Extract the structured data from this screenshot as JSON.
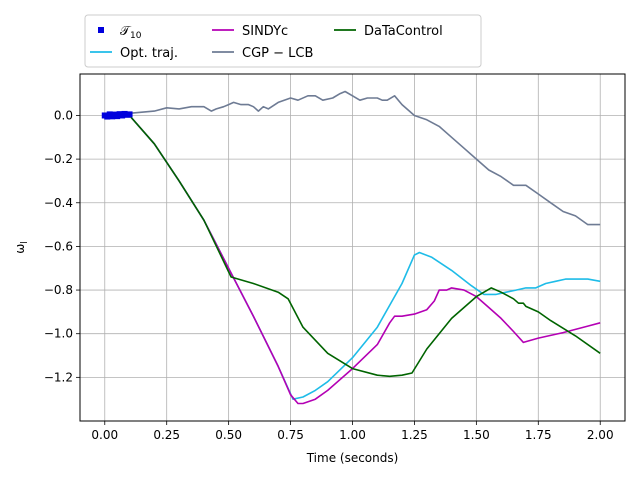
{
  "chart_data": {
    "type": "line",
    "xlabel": "Time (seconds)",
    "ylabel": "ω",
    "ylabel_sub": "l",
    "xlim": [
      -0.1,
      2.1
    ],
    "ylim": [
      -1.4,
      0.19
    ],
    "xticks": [
      0.0,
      0.25,
      0.5,
      0.75,
      1.0,
      1.25,
      1.5,
      1.75,
      2.0
    ],
    "xtick_labels": [
      "0.00",
      "0.25",
      "0.50",
      "0.75",
      "1.00",
      "1.25",
      "1.50",
      "1.75",
      "2.00"
    ],
    "yticks": [
      0.0,
      -0.2,
      -0.4,
      -0.6,
      -0.8,
      -1.0,
      -1.2
    ],
    "ytick_labels": [
      "0.0",
      "−0.2",
      "−0.4",
      "−0.6",
      "−0.8",
      "−1.0",
      "−1.2"
    ],
    "grid": true,
    "legend_placement": "top-center",
    "legend": [
      {
        "label": "𝒯",
        "sub": "10",
        "color": "#0000dd",
        "kind": "marker"
      },
      {
        "label": "Opt. traj.",
        "color": "#1ebce8",
        "kind": "line"
      },
      {
        "label": "SINDYc",
        "color": "#b400b4",
        "kind": "line"
      },
      {
        "label": "CGP − LCB",
        "color": "#6e7b94",
        "kind": "line"
      },
      {
        "label": "DaTaControl",
        "color": "#006400",
        "kind": "line"
      }
    ],
    "series": [
      {
        "name": "CGP − LCB",
        "color": "#6e7b94",
        "points": [
          [
            0,
            0
          ],
          [
            0.1,
            0.01
          ],
          [
            0.2,
            0.02
          ],
          [
            0.25,
            0.035
          ],
          [
            0.3,
            0.03
          ],
          [
            0.35,
            0.04
          ],
          [
            0.4,
            0.04
          ],
          [
            0.43,
            0.02
          ],
          [
            0.45,
            0.03
          ],
          [
            0.48,
            0.04
          ],
          [
            0.5,
            0.05
          ],
          [
            0.52,
            0.06
          ],
          [
            0.55,
            0.05
          ],
          [
            0.58,
            0.05
          ],
          [
            0.6,
            0.04
          ],
          [
            0.62,
            0.02
          ],
          [
            0.64,
            0.04
          ],
          [
            0.66,
            0.03
          ],
          [
            0.7,
            0.06
          ],
          [
            0.75,
            0.08
          ],
          [
            0.78,
            0.07
          ],
          [
            0.82,
            0.09
          ],
          [
            0.85,
            0.09
          ],
          [
            0.88,
            0.07
          ],
          [
            0.92,
            0.08
          ],
          [
            0.95,
            0.1
          ],
          [
            0.97,
            0.11
          ],
          [
            1.0,
            0.09
          ],
          [
            1.03,
            0.07
          ],
          [
            1.06,
            0.08
          ],
          [
            1.1,
            0.08
          ],
          [
            1.12,
            0.07
          ],
          [
            1.14,
            0.07
          ],
          [
            1.17,
            0.09
          ],
          [
            1.2,
            0.05
          ],
          [
            1.25,
            0.0
          ],
          [
            1.3,
            -0.02
          ],
          [
            1.35,
            -0.05
          ],
          [
            1.4,
            -0.1
          ],
          [
            1.45,
            -0.15
          ],
          [
            1.5,
            -0.2
          ],
          [
            1.55,
            -0.25
          ],
          [
            1.6,
            -0.28
          ],
          [
            1.65,
            -0.32
          ],
          [
            1.7,
            -0.32
          ],
          [
            1.75,
            -0.36
          ],
          [
            1.8,
            -0.4
          ],
          [
            1.85,
            -0.44
          ],
          [
            1.9,
            -0.46
          ],
          [
            1.95,
            -0.5
          ],
          [
            2.0,
            -0.5
          ]
        ]
      },
      {
        "name": "Opt. traj.",
        "color": "#1ebce8",
        "points": [
          [
            0,
            0
          ],
          [
            0.05,
            0.0
          ],
          [
            0.1,
            0.0
          ],
          [
            0.2,
            -0.13
          ],
          [
            0.3,
            -0.3
          ],
          [
            0.4,
            -0.48
          ],
          [
            0.5,
            -0.7
          ],
          [
            0.6,
            -0.92
          ],
          [
            0.7,
            -1.15
          ],
          [
            0.76,
            -1.3
          ],
          [
            0.8,
            -1.29
          ],
          [
            0.85,
            -1.26
          ],
          [
            0.9,
            -1.22
          ],
          [
            1.0,
            -1.11
          ],
          [
            1.1,
            -0.97
          ],
          [
            1.2,
            -0.77
          ],
          [
            1.25,
            -0.64
          ],
          [
            1.27,
            -0.628
          ],
          [
            1.32,
            -0.65
          ],
          [
            1.4,
            -0.71
          ],
          [
            1.48,
            -0.78
          ],
          [
            1.53,
            -0.82
          ],
          [
            1.58,
            -0.82
          ],
          [
            1.62,
            -0.81
          ],
          [
            1.66,
            -0.8
          ],
          [
            1.7,
            -0.79
          ],
          [
            1.74,
            -0.79
          ],
          [
            1.78,
            -0.77
          ],
          [
            1.82,
            -0.76
          ],
          [
            1.86,
            -0.75
          ],
          [
            1.9,
            -0.75
          ],
          [
            1.95,
            -0.75
          ],
          [
            2.0,
            -0.76
          ]
        ]
      },
      {
        "name": "SINDYc",
        "color": "#b400b4",
        "points": [
          [
            0,
            0
          ],
          [
            0.05,
            0.0
          ],
          [
            0.1,
            0.0
          ],
          [
            0.2,
            -0.13
          ],
          [
            0.3,
            -0.3
          ],
          [
            0.4,
            -0.48
          ],
          [
            0.5,
            -0.7
          ],
          [
            0.6,
            -0.92
          ],
          [
            0.7,
            -1.15
          ],
          [
            0.75,
            -1.28
          ],
          [
            0.78,
            -1.32
          ],
          [
            0.8,
            -1.32
          ],
          [
            0.85,
            -1.3
          ],
          [
            0.9,
            -1.26
          ],
          [
            1.0,
            -1.16
          ],
          [
            1.1,
            -1.05
          ],
          [
            1.15,
            -0.95
          ],
          [
            1.17,
            -0.92
          ],
          [
            1.2,
            -0.92
          ],
          [
            1.25,
            -0.91
          ],
          [
            1.3,
            -0.89
          ],
          [
            1.33,
            -0.85
          ],
          [
            1.35,
            -0.8
          ],
          [
            1.38,
            -0.8
          ],
          [
            1.4,
            -0.79
          ],
          [
            1.45,
            -0.8
          ],
          [
            1.5,
            -0.83
          ],
          [
            1.55,
            -0.88
          ],
          [
            1.6,
            -0.93
          ],
          [
            1.65,
            -0.99
          ],
          [
            1.69,
            -1.04
          ],
          [
            1.75,
            -1.02
          ],
          [
            1.85,
            -0.995
          ],
          [
            1.95,
            -0.965
          ],
          [
            2.0,
            -0.95
          ]
        ]
      },
      {
        "name": "DaTaControl",
        "color": "#006400",
        "points": [
          [
            0,
            0
          ],
          [
            0.05,
            0.0
          ],
          [
            0.1,
            0.0
          ],
          [
            0.2,
            -0.13
          ],
          [
            0.3,
            -0.3
          ],
          [
            0.4,
            -0.48
          ],
          [
            0.51,
            -0.74
          ],
          [
            0.6,
            -0.77
          ],
          [
            0.7,
            -0.81
          ],
          [
            0.74,
            -0.84
          ],
          [
            0.8,
            -0.97
          ],
          [
            0.9,
            -1.09
          ],
          [
            1.0,
            -1.16
          ],
          [
            1.1,
            -1.19
          ],
          [
            1.15,
            -1.195
          ],
          [
            1.2,
            -1.19
          ],
          [
            1.24,
            -1.18
          ],
          [
            1.3,
            -1.07
          ],
          [
            1.4,
            -0.93
          ],
          [
            1.5,
            -0.83
          ],
          [
            1.56,
            -0.79
          ],
          [
            1.6,
            -0.81
          ],
          [
            1.65,
            -0.84
          ],
          [
            1.67,
            -0.86
          ],
          [
            1.69,
            -0.86
          ],
          [
            1.7,
            -0.875
          ],
          [
            1.75,
            -0.9
          ],
          [
            1.8,
            -0.94
          ],
          [
            1.9,
            -1.01
          ],
          [
            2.0,
            -1.09
          ]
        ]
      }
    ],
    "markers": {
      "name": "𝒯10",
      "color": "#0000dd",
      "points": [
        [
          0,
          0
        ],
        [
          0.01,
          -0.005
        ],
        [
          0.02,
          0.005
        ],
        [
          0.03,
          -0.004
        ],
        [
          0.04,
          0.004
        ],
        [
          0.05,
          -0.003
        ],
        [
          0.06,
          0.006
        ],
        [
          0.07,
          0.0
        ],
        [
          0.08,
          0.007
        ],
        [
          0.09,
          0.003
        ],
        [
          0.1,
          0.005
        ]
      ]
    }
  }
}
